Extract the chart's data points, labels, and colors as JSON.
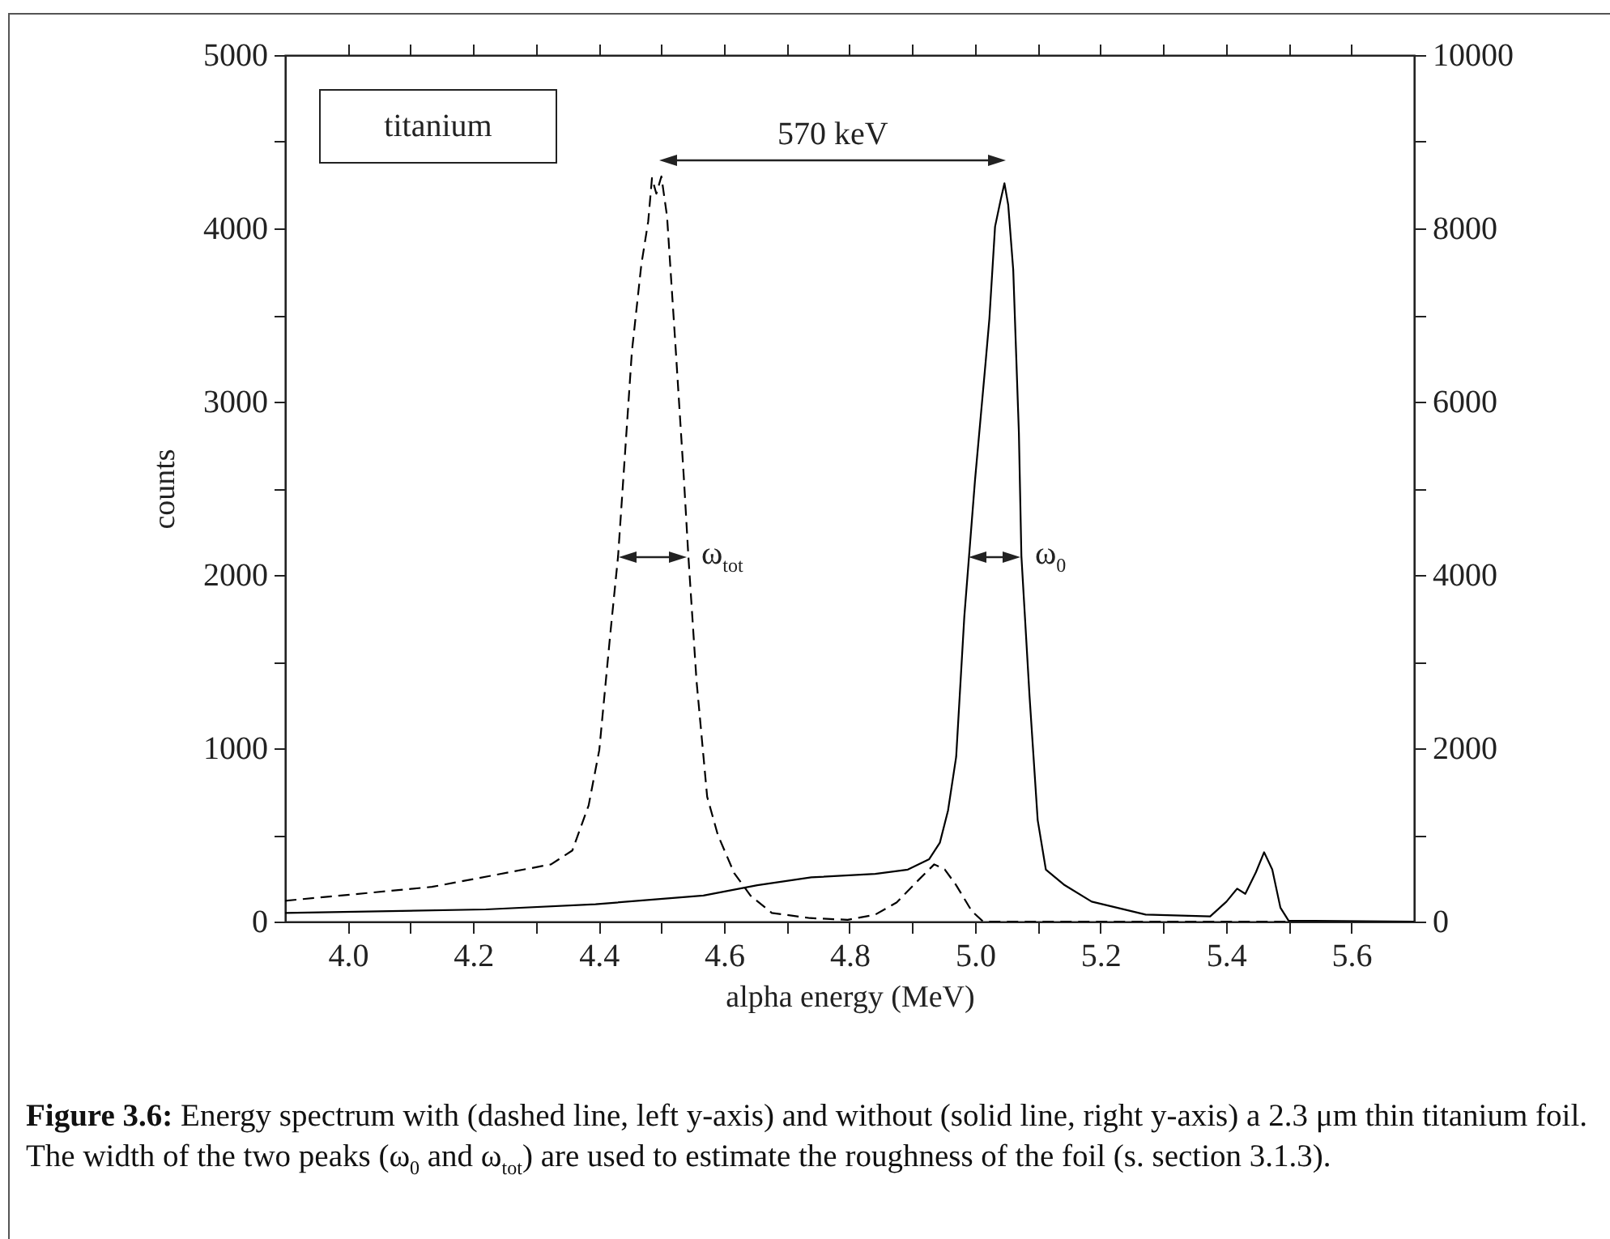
{
  "chart_data": {
    "type": "line",
    "xlabel": "alpha energy (MeV)",
    "ylabel": "counts",
    "xlim": [
      3.9,
      5.7
    ],
    "xticks": [
      {
        "value": 4,
        "label": "4.0"
      },
      {
        "value": 4.1,
        "label": null
      },
      4.2,
      {
        "value": 4.3,
        "label": null
      },
      4.4,
      {
        "value": 4.5,
        "label": null
      },
      4.6,
      {
        "value": 4.7,
        "label": null
      },
      4.8,
      {
        "value": 4.9,
        "label": null
      },
      {
        "value": 5,
        "label": "5.0"
      },
      {
        "value": 5.1,
        "label": null
      },
      5.2,
      {
        "value": 5.3,
        "label": null
      },
      5.4,
      {
        "value": 5.5,
        "label": null
      },
      5.6
    ],
    "ylim": [
      0,
      5000
    ],
    "yticks": [
      0,
      {
        "value": 500,
        "label": null
      },
      1000,
      {
        "value": 1500,
        "label": null
      },
      2000,
      {
        "value": 2500,
        "label": null
      },
      3000,
      {
        "value": 3500,
        "label": null
      },
      4000,
      {
        "value": 4500,
        "label": null
      },
      5000
    ],
    "y2lim": [
      0,
      10000
    ],
    "y2ticks": [
      0,
      {
        "value": 1000,
        "label": null
      },
      2000,
      {
        "value": 3000,
        "label": null
      },
      4000,
      {
        "value": 5000,
        "label": null
      },
      6000,
      {
        "value": 7000,
        "label": null
      },
      8000,
      {
        "value": 9000,
        "label": null
      },
      10000
    ],
    "series": [
      {
        "color": "#000000",
        "line_style": "dashed",
        "x": [
          3.9,
          4.134,
          4.324,
          4.358,
          4.384,
          4.401,
          4.418,
          4.431,
          4.442,
          4.453,
          4.468,
          4.479,
          4.485,
          4.492,
          4.5,
          4.509,
          4.522,
          4.536,
          4.543,
          4.556,
          4.573,
          4.59,
          4.616,
          4.642,
          4.676,
          4.737,
          4.797,
          4.841,
          4.875,
          4.91,
          4.935,
          4.952,
          4.97,
          4.995,
          5.013,
          5.2,
          5.4,
          5.7
        ],
        "values": [
          120,
          200,
          330,
          410,
          670,
          990,
          1640,
          2110,
          2700,
          3290,
          3790,
          4040,
          4290,
          4200,
          4300,
          4070,
          3350,
          2550,
          2110,
          1390,
          720,
          500,
          280,
          150,
          50,
          20,
          10,
          40,
          110,
          240,
          330,
          300,
          210,
          60,
          0,
          0,
          0,
          0
        ]
      },
      {
        "color": "#000000",
        "line_style": "solid",
        "axis": "y2",
        "x": [
          3.9,
          4.22,
          4.395,
          4.567,
          4.653,
          4.739,
          4.841,
          4.893,
          4.927,
          4.944,
          4.957,
          4.97,
          4.983,
          5.0,
          5.017,
          5.023,
          5.032,
          5.041,
          5.047,
          5.053,
          5.061,
          5.07,
          5.074,
          5.087,
          5.1,
          5.113,
          5.143,
          5.186,
          5.272,
          5.375,
          5.401,
          5.418,
          5.431,
          5.448,
          5.461,
          5.474,
          5.487,
          5.5,
          5.7
        ],
        "values": [
          100,
          140,
          200,
          300,
          420,
          510,
          550,
          600,
          720,
          910,
          1280,
          1900,
          3520,
          5090,
          6460,
          6960,
          8020,
          8330,
          8520,
          8270,
          7520,
          5640,
          4220,
          2600,
          1170,
          600,
          420,
          230,
          80,
          60,
          230,
          380,
          320,
          570,
          800,
          600,
          160,
          10,
          0
        ]
      }
    ],
    "annotations": [
      "titanium",
      "570 keV",
      "ω$_{tot}$",
      "ω$_{0}$",
      "Figure 3.6: Energy spectrum with (dashed line, left y-axis) and without (solid line, right y-axis) a 2.3 μm thin titanium foil. The width of the two peaks (ω$_{0}$ and ω$_{tot}$) are used to estimate the roughness of the foil (s. section 3.1.3)."
    ]
  }
}
